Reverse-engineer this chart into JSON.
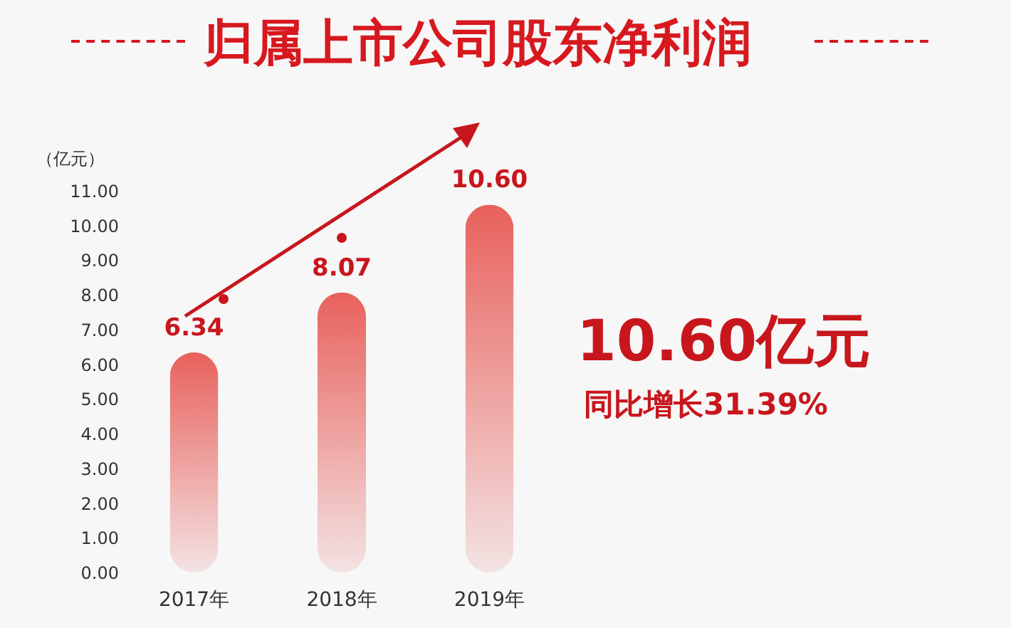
{
  "chart_data": {
    "type": "bar",
    "title": "归属上市公司股东净利润",
    "ylabel": "（亿元）",
    "categories": [
      "2017年",
      "2018年",
      "2019年"
    ],
    "values": [
      6.34,
      8.07,
      10.6
    ],
    "value_labels": [
      "6.34",
      "8.07",
      "10.60"
    ],
    "color": "#e8615c",
    "ylim": [
      0,
      11
    ],
    "yticks": [
      {
        "value": 0,
        "label": "0.00"
      },
      {
        "value": 1,
        "label": "1.00"
      },
      {
        "value": 2,
        "label": "2.00"
      },
      {
        "value": 3,
        "label": "3.00"
      },
      {
        "value": 4,
        "label": "4.00"
      },
      {
        "value": 5,
        "label": "5.00"
      },
      {
        "value": 6,
        "label": "6.00"
      },
      {
        "value": 7,
        "label": "7.00"
      },
      {
        "value": 8,
        "label": "8.00"
      },
      {
        "value": 9,
        "label": "9.00"
      },
      {
        "value": 10,
        "label": "10.00"
      },
      {
        "value": 11,
        "label": "11.00"
      }
    ],
    "grid": false,
    "annotations": [
      "10.60亿元",
      "同比增长31.39%"
    ]
  }
}
